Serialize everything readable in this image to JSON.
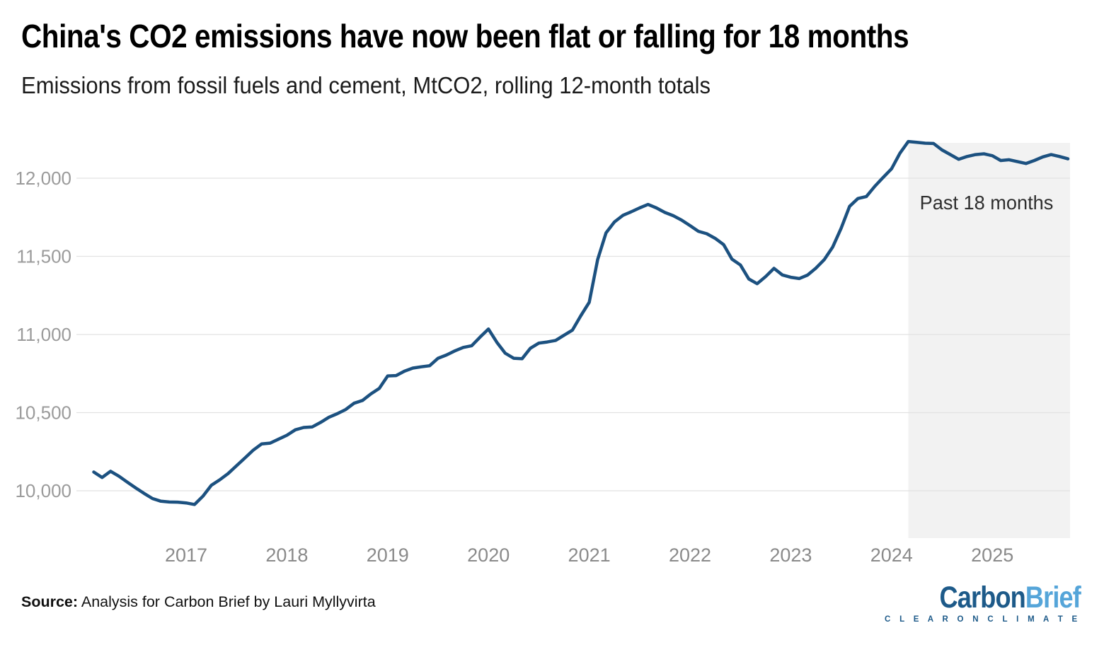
{
  "header": {
    "title": "China's CO2 emissions have now been flat or falling for 18 months",
    "subtitle": "Emissions from fossil fuels and cement, MtCO2, rolling 12-month totals"
  },
  "annotation": {
    "label": "Past 18 months",
    "band_start": "2024-03",
    "band_end": "2025-10"
  },
  "footer": {
    "source_label": "Source:",
    "source_text": " Analysis for Carbon Brief by Lauri Myllyvirta",
    "logo_part1": "Carbon",
    "logo_part2": "Brief",
    "logo_tagline": "C L E A R   O N   C L I M A T E"
  },
  "colors": {
    "line": "#1c5180",
    "band": "#f2f2f2",
    "gridline": "#e2e2e2",
    "y_tick_label": "#9b9b9b",
    "x_tick_label": "#8a8a8a",
    "logo_dark_blue": "#1d5a89",
    "logo_light_blue": "#55a5d9"
  },
  "chart_data": {
    "type": "line",
    "title": "China's CO2 emissions have now been flat or falling for 18 months",
    "subtitle": "Emissions from fossil fuels and cement, MtCO2, rolling 12-month totals",
    "unit": "MtCO2",
    "grid": "horizontal",
    "legend": "none",
    "ylim": [
      9850,
      12300
    ],
    "xlim": [
      "2016-02",
      "2025-10"
    ],
    "y_ticks": [
      {
        "label": "10,000",
        "value": 10000
      },
      {
        "label": "10,500",
        "value": 10500
      },
      {
        "label": "11,000",
        "value": 11000
      },
      {
        "label": "11,500",
        "value": 11500
      },
      {
        "label": "12,000",
        "value": 12000
      }
    ],
    "x_ticks": [
      {
        "label": "2017",
        "year": 2017
      },
      {
        "label": "2018",
        "year": 2018
      },
      {
        "label": "2019",
        "year": 2019
      },
      {
        "label": "2020",
        "year": 2020
      },
      {
        "label": "2021",
        "year": 2021
      },
      {
        "label": "2022",
        "year": 2022
      },
      {
        "label": "2023",
        "year": 2023
      },
      {
        "label": "2024",
        "year": 2024
      },
      {
        "label": "2025",
        "year": 2025
      }
    ],
    "highlight_band": {
      "label": "Past 18 months",
      "start": "2024-03",
      "end": "2025-10"
    },
    "series": [
      {
        "name": "Emissions from fossil fuels and cement, rolling 12-month totals (MtCO2)",
        "frequency": "monthly",
        "start": "2016-02",
        "end": "2025-10",
        "values": [
          10120,
          10085,
          10125,
          10093,
          10055,
          10018,
          9983,
          9950,
          9933,
          9928,
          9927,
          9922,
          9912,
          9965,
          10035,
          10070,
          10110,
          10160,
          10210,
          10260,
          10300,
          10305,
          10330,
          10355,
          10390,
          10405,
          10408,
          10437,
          10470,
          10493,
          10520,
          10560,
          10578,
          10620,
          10655,
          10735,
          10737,
          10765,
          10785,
          10793,
          10800,
          10848,
          10869,
          10895,
          10917,
          10928,
          10983,
          11035,
          10950,
          10880,
          10848,
          10845,
          10912,
          10945,
          10952,
          10962,
          10995,
          11028,
          11120,
          11206,
          11479,
          11650,
          11720,
          11762,
          11785,
          11810,
          11832,
          11810,
          11781,
          11760,
          11732,
          11697,
          11660,
          11645,
          11615,
          11575,
          11482,
          11445,
          11355,
          11325,
          11370,
          11423,
          11381,
          11366,
          11358,
          11380,
          11425,
          11480,
          11560,
          11680,
          11820,
          11870,
          11883,
          11948,
          12005,
          12060,
          12160,
          12235,
          12230,
          12224,
          12222,
          12181,
          12151,
          12121,
          12139,
          12151,
          12156,
          12144,
          12113,
          12118,
          12106,
          12094,
          12113,
          12136,
          12151,
          12139,
          12124
        ]
      }
    ]
  }
}
